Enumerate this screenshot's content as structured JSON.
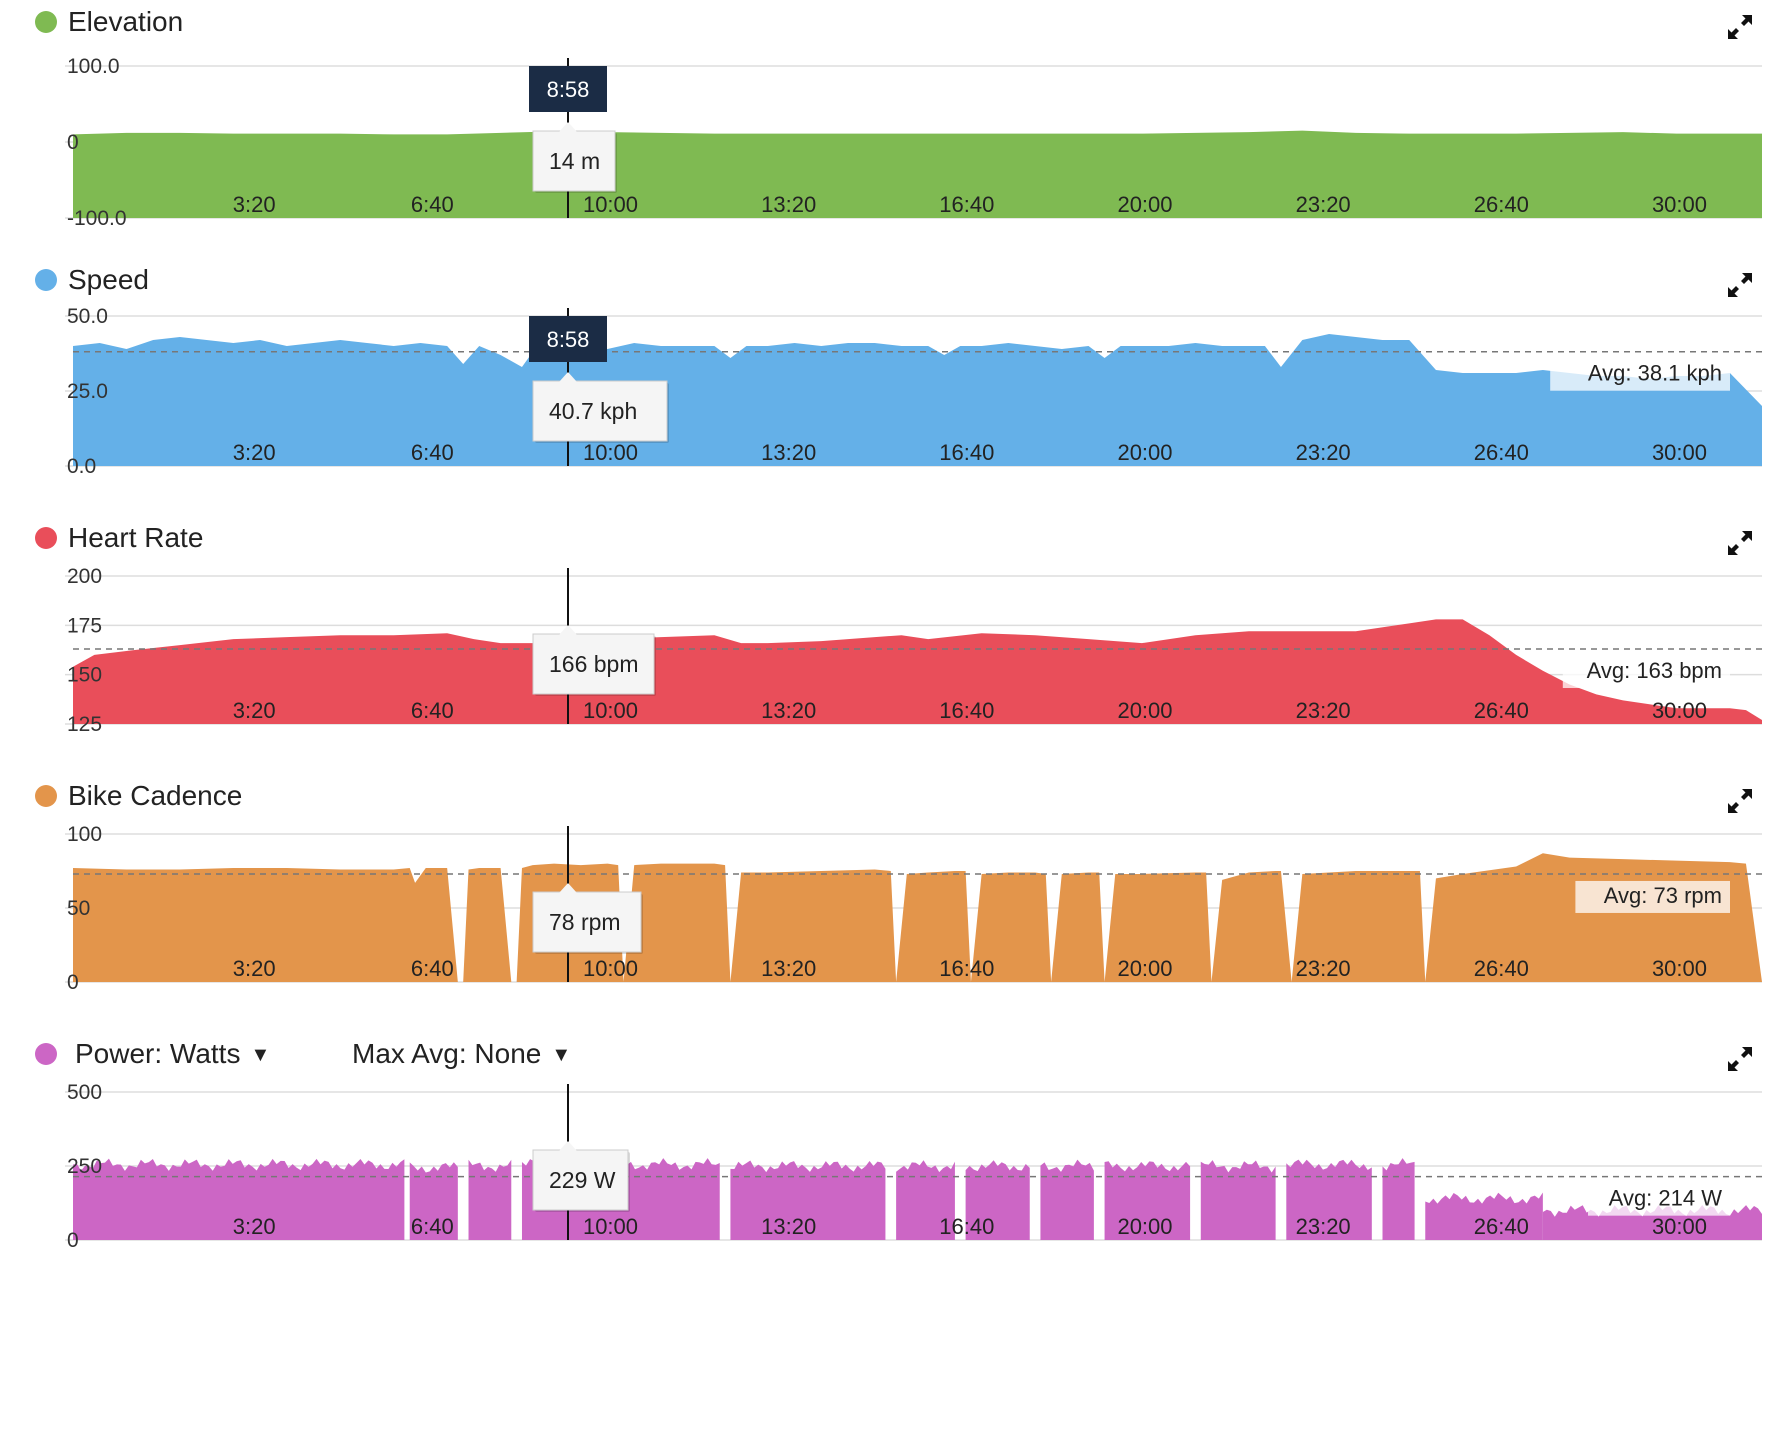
{
  "cursor_time": "8:58",
  "icons": {
    "expand": "expand-arrows-icon",
    "caret": "caret-down-icon"
  },
  "charts": [
    {
      "id": "elevation",
      "title": "Elevation",
      "color": "#7fba52",
      "tooltip": "14 m",
      "show_time_badge": true,
      "avg_label": ""
    },
    {
      "id": "speed",
      "title": "Speed",
      "color": "#64b0e8",
      "tooltip": "40.7 kph",
      "show_time_badge": true,
      "avg_label": "Avg: 38.1 kph"
    },
    {
      "id": "heart_rate",
      "title": "Heart Rate",
      "color": "#e94e5a",
      "tooltip": "166 bpm",
      "show_time_badge": false,
      "avg_label": "Avg: 163 bpm"
    },
    {
      "id": "cadence",
      "title": "Bike Cadence",
      "color": "#e3954b",
      "tooltip": "78 rpm",
      "show_time_badge": false,
      "avg_label": "Avg: 73 rpm"
    },
    {
      "id": "power",
      "title": "Power: Watts",
      "color": "#cc66c5",
      "tooltip": "229 W",
      "show_time_badge": false,
      "avg_label": "Avg: 214 W",
      "dropdowns": {
        "metric": "Power: Watts",
        "max_avg": "Max Avg: None"
      }
    }
  ],
  "chart_data": [
    {
      "type": "area",
      "title": "Elevation",
      "unit": "m",
      "x_unit": "elapsed minutes",
      "xlim": [
        0,
        31.6
      ],
      "ylim": [
        -100,
        100
      ],
      "y_ticks": [
        "100.0",
        "0",
        "-100.0"
      ],
      "x_ticks": [
        "3:20",
        "6:40",
        "10:00",
        "13:20",
        "16:40",
        "20:00",
        "23:20",
        "26:40",
        "30:00"
      ],
      "x": [
        0,
        1,
        2,
        3,
        4,
        5,
        6,
        7,
        8,
        9,
        10,
        11,
        12,
        13,
        14,
        15,
        16,
        17,
        18,
        19,
        20,
        21,
        22,
        23,
        24,
        25,
        26,
        27,
        28,
        29,
        30,
        31.6
      ],
      "y": [
        10,
        12,
        12,
        11,
        11,
        11,
        10,
        10,
        12,
        14,
        13,
        12,
        11,
        11,
        11,
        11,
        11,
        11,
        11,
        11,
        11,
        12,
        13,
        15,
        12,
        11,
        11,
        11,
        12,
        13,
        11,
        11
      ],
      "cursor": {
        "time": "8:58",
        "value": 14
      }
    },
    {
      "type": "area",
      "title": "Speed",
      "unit": "kph",
      "x_unit": "elapsed minutes",
      "xlim": [
        0,
        31.6
      ],
      "ylim": [
        0,
        50
      ],
      "y_ticks": [
        "50.0",
        "25.0",
        "0.0"
      ],
      "x_ticks": [
        "3:20",
        "6:40",
        "10:00",
        "13:20",
        "16:40",
        "20:00",
        "23:20",
        "26:40",
        "30:00"
      ],
      "average": 38.1,
      "x": [
        0,
        0.5,
        1,
        1.5,
        2,
        2.5,
        3,
        3.5,
        4,
        4.5,
        5,
        5.5,
        6,
        6.5,
        7,
        7.3,
        7.6,
        8,
        8.4,
        8.6,
        9,
        9.5,
        10,
        10.5,
        11,
        11.5,
        12,
        12.3,
        12.6,
        13,
        13.5,
        14,
        14.5,
        15,
        15.5,
        16,
        16.3,
        16.6,
        17,
        17.5,
        18,
        18.5,
        19,
        19.3,
        19.6,
        20,
        20.5,
        21,
        21.5,
        22,
        22.3,
        22.6,
        23,
        23.5,
        24,
        24.5,
        25,
        25.5,
        26,
        26.5,
        27,
        27.5,
        28,
        28.5,
        29,
        29.5,
        30,
        30.5,
        31,
        31.6
      ],
      "y": [
        40,
        41,
        39,
        42,
        43,
        42,
        41,
        42,
        40,
        41,
        42,
        41,
        40,
        41,
        40,
        34,
        40,
        37,
        33,
        38,
        41,
        40,
        39,
        41,
        40,
        40,
        40,
        36,
        40,
        40,
        41,
        40,
        41,
        41,
        40,
        40,
        37,
        40,
        40,
        41,
        40,
        39,
        40,
        36,
        40,
        40,
        40,
        41,
        40,
        40,
        40,
        33,
        42,
        44,
        43,
        42,
        42,
        32,
        31,
        31,
        31,
        32,
        31,
        30,
        30,
        29,
        30,
        30,
        31,
        20
      ],
      "cursor": {
        "time": "8:58",
        "value": 40.7
      }
    },
    {
      "type": "area",
      "title": "Heart Rate",
      "unit": "bpm",
      "x_unit": "elapsed minutes",
      "xlim": [
        0,
        31.6
      ],
      "ylim": [
        125,
        200
      ],
      "y_ticks": [
        "200",
        "175",
        "150",
        "125"
      ],
      "x_ticks": [
        "3:20",
        "6:40",
        "10:00",
        "13:20",
        "16:40",
        "20:00",
        "23:20",
        "26:40",
        "30:00"
      ],
      "average": 163,
      "x": [
        0,
        0.4,
        1,
        2,
        3,
        4,
        5,
        6,
        7,
        7.5,
        8,
        9,
        10,
        11,
        12,
        12.5,
        13,
        14,
        15,
        15.5,
        16,
        17,
        18,
        19,
        20,
        21,
        22,
        23,
        24,
        25,
        25.5,
        26,
        26.5,
        27,
        27.5,
        28,
        28.5,
        29,
        30,
        31,
        31.3,
        31.6
      ],
      "y": [
        154,
        160,
        162,
        165,
        168,
        169,
        170,
        170,
        171,
        168,
        166,
        166,
        168,
        169,
        170,
        166,
        166,
        167,
        169,
        170,
        168,
        171,
        170,
        168,
        166,
        170,
        172,
        172,
        172,
        176,
        178,
        178,
        170,
        160,
        152,
        145,
        140,
        137,
        133,
        133,
        132,
        127
      ],
      "cursor": {
        "time": "8:58",
        "value": 166
      }
    },
    {
      "type": "area",
      "title": "Bike Cadence",
      "unit": "rpm",
      "x_unit": "elapsed minutes",
      "xlim": [
        0,
        31.6
      ],
      "ylim": [
        0,
        100
      ],
      "y_ticks": [
        "100",
        "50",
        "0"
      ],
      "x_ticks": [
        "3:20",
        "6:40",
        "10:00",
        "13:20",
        "16:40",
        "20:00",
        "23:20",
        "26:40",
        "30:00"
      ],
      "average": 73,
      "x": [
        0,
        1,
        2,
        3,
        4,
        5,
        6,
        6.3,
        6.4,
        6.6,
        7,
        7.2,
        7.3,
        7.4,
        7.6,
        8,
        8.2,
        8.3,
        8.4,
        8.6,
        9,
        9.5,
        10,
        10.2,
        10.3,
        10.5,
        11,
        11.5,
        12,
        12.2,
        12.3,
        12.5,
        13,
        14,
        15,
        15.3,
        15.4,
        15.6,
        16,
        16.5,
        16.7,
        16.8,
        17,
        17.5,
        18,
        18.2,
        18.3,
        18.5,
        19,
        19.2,
        19.3,
        19.5,
        20,
        21,
        21.2,
        21.3,
        21.5,
        22,
        22.5,
        22.6,
        22.8,
        23,
        24,
        25,
        25.2,
        25.3,
        25.5,
        26,
        27,
        27.5,
        28,
        29,
        30,
        31,
        31.3,
        31.6
      ],
      "y": [
        77,
        76,
        76,
        77,
        77,
        76,
        76,
        77,
        67,
        77,
        77,
        0,
        0,
        76,
        77,
        77,
        0,
        0,
        77,
        79,
        80,
        79,
        80,
        79,
        0,
        79,
        80,
        80,
        80,
        79,
        0,
        74,
        74,
        75,
        76,
        75,
        0,
        73,
        74,
        75,
        75,
        0,
        73,
        74,
        74,
        73,
        0,
        73,
        74,
        74,
        0,
        73,
        73,
        74,
        74,
        0,
        69,
        74,
        75,
        75,
        0,
        73,
        75,
        75,
        75,
        0,
        70,
        73,
        78,
        87,
        84,
        83,
        82,
        81,
        80,
        0
      ],
      "cursor": {
        "time": "8:58",
        "value": 78
      }
    },
    {
      "type": "area",
      "title": "Power: Watts",
      "unit": "W",
      "x_unit": "elapsed minutes",
      "xlim": [
        0,
        31.6
      ],
      "ylim": [
        0,
        500
      ],
      "y_ticks": [
        "500",
        "250",
        "0"
      ],
      "x_ticks": [
        "3:20",
        "6:40",
        "10:00",
        "13:20",
        "16:40",
        "20:00",
        "23:20",
        "26:40",
        "30:00"
      ],
      "average": 214,
      "segments": [
        {
          "x": [
            0,
            6.2
          ],
          "level": 255
        },
        {
          "x": [
            6.3,
            7.2
          ],
          "level": 245
        },
        {
          "x": [
            7.4,
            8.2
          ],
          "level": 250
        },
        {
          "x": [
            8.4,
            12.1
          ],
          "level": 255
        },
        {
          "x": [
            12.3,
            15.2
          ],
          "level": 250
        },
        {
          "x": [
            15.4,
            16.5
          ],
          "level": 250
        },
        {
          "x": [
            16.7,
            17.9
          ],
          "level": 250
        },
        {
          "x": [
            18.1,
            19.1
          ],
          "level": 250
        },
        {
          "x": [
            19.3,
            20.9
          ],
          "level": 250
        },
        {
          "x": [
            21.1,
            22.5
          ],
          "level": 250
        },
        {
          "x": [
            22.7,
            24.3
          ],
          "level": 255
        },
        {
          "x": [
            24.5,
            25.1
          ],
          "level": 255
        },
        {
          "x": [
            25.3,
            27.5
          ],
          "level": 140
        },
        {
          "x": [
            27.5,
            31.6
          ],
          "level": 100
        }
      ],
      "cursor": {
        "time": "8:58",
        "value": 229
      }
    }
  ]
}
